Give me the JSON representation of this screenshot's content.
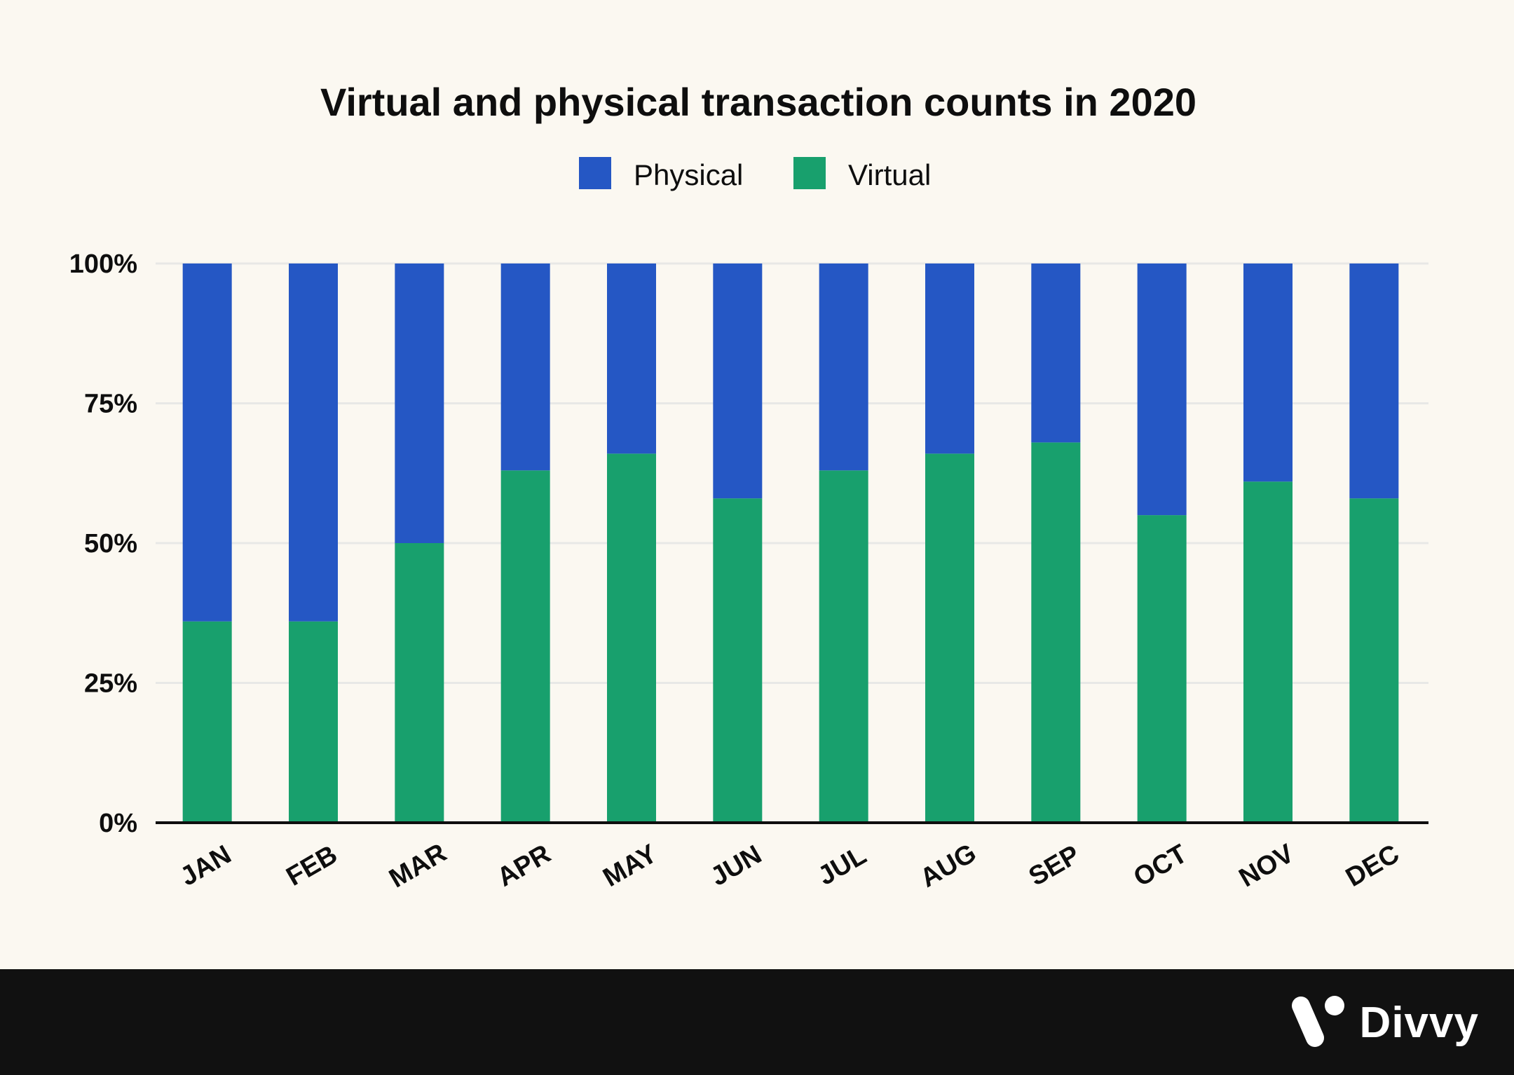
{
  "colors": {
    "background": "#FBF8F1",
    "physical": "#2557C4",
    "virtual": "#18A06D",
    "grid": "#E8E8E6",
    "axis": "#0E0E0E",
    "footer": "#111111"
  },
  "chart_data": {
    "type": "bar",
    "stacked": true,
    "title": "Virtual and physical transaction counts in 2020",
    "xlabel": "",
    "ylabel": "",
    "categories": [
      "JAN",
      "FEB",
      "MAR",
      "APR",
      "MAY",
      "JUN",
      "JUL",
      "AUG",
      "SEP",
      "OCT",
      "NOV",
      "DEC"
    ],
    "series": [
      {
        "name": "Virtual",
        "color": "#18A06D",
        "values": [
          36,
          36,
          50,
          63,
          66,
          58,
          63,
          66,
          68,
          55,
          61,
          58
        ]
      },
      {
        "name": "Physical",
        "color": "#2557C4",
        "values": [
          64,
          64,
          50,
          37,
          34,
          42,
          37,
          34,
          32,
          45,
          39,
          42
        ]
      }
    ],
    "legend": [
      "Physical",
      "Virtual"
    ],
    "legend_position": "top-center",
    "ylim": [
      0,
      100
    ],
    "yticks": [
      "0%",
      "25%",
      "50%",
      "75%",
      "100%"
    ],
    "grid": true
  },
  "brand": {
    "name": "Divvy",
    "icon": "divvy-logo-icon"
  }
}
